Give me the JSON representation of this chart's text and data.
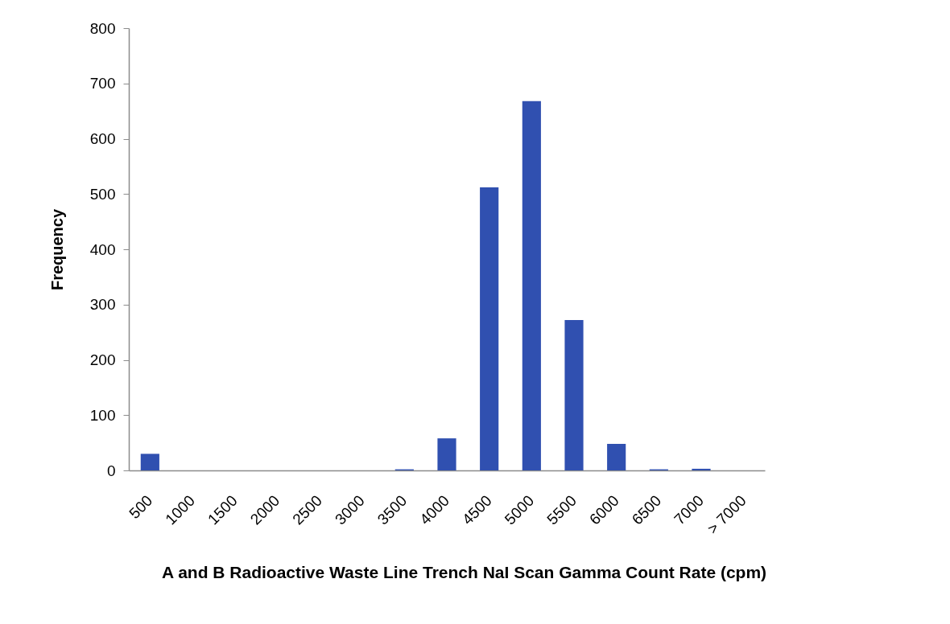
{
  "chart_data": {
    "type": "bar",
    "xlabel": "A and B Radioactive Waste Line Trench NaI Scan Gamma Count Rate (cpm)",
    "ylabel": "Frequency",
    "categories": [
      "500",
      "1000",
      "1500",
      "2000",
      "2500",
      "3000",
      "3500",
      "4000",
      "4500",
      "5000",
      "5500",
      "6000",
      "6500",
      "7000",
      "> 7000"
    ],
    "values": [
      30,
      0,
      0,
      0,
      0,
      0,
      2,
      58,
      512,
      668,
      272,
      48,
      2,
      3,
      0
    ],
    "color": "#3050b0",
    "ylim": [
      0,
      800
    ],
    "yticks": [
      0,
      100,
      200,
      300,
      400,
      500,
      600,
      700,
      800
    ]
  }
}
